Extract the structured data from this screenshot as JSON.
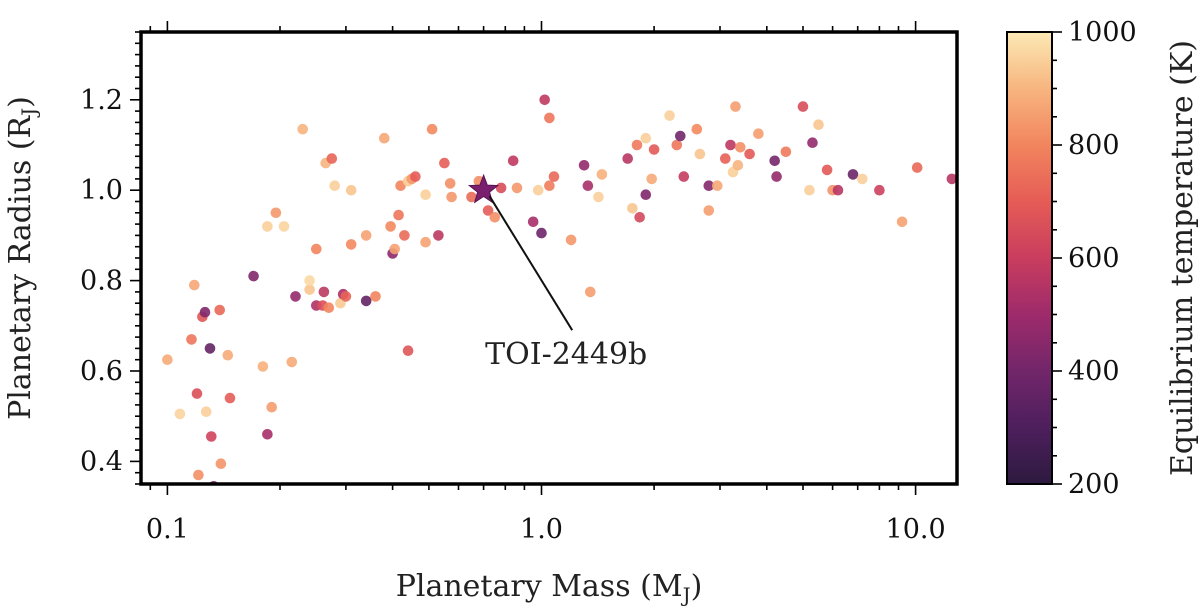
{
  "chart_data": {
    "type": "scatter",
    "xscale": "log",
    "xlim": [
      0.085,
      12.9
    ],
    "ylim": [
      0.35,
      1.35
    ],
    "xlabel": "Planetary Mass (M",
    "xlabel_sub": "J",
    "ylabel": "Planetary Radius (R",
    "ylabel_sub": "J",
    "colorbar_label": "Equilibrium temperature (K)",
    "colorbar_range": [
      200,
      1000
    ],
    "colorbar_ticks": [
      200,
      400,
      600,
      800,
      1000
    ],
    "x_ticks": [
      {
        "value": 0.1,
        "label": "0.1"
      },
      {
        "value": 1.0,
        "label": "1.0"
      },
      {
        "value": 10.0,
        "label": "10.0"
      }
    ],
    "y_ticks": [
      {
        "value": 0.4,
        "label": "0.4"
      },
      {
        "value": 0.6,
        "label": "0.6"
      },
      {
        "value": 0.8,
        "label": "0.8"
      },
      {
        "value": 1.0,
        "label": "1.0"
      },
      {
        "value": 1.2,
        "label": "1.2"
      }
    ],
    "highlight": {
      "name": "TOI-2449b",
      "x": 0.7,
      "y": 1.0,
      "temp": 420
    },
    "annotation": {
      "text": "TOI-2449b",
      "x": 1.15,
      "y": 0.615
    },
    "points": [
      [
        0.1,
        0.625,
        880
      ],
      [
        0.108,
        0.505,
        960
      ],
      [
        0.118,
        0.79,
        870
      ],
      [
        0.116,
        0.67,
        760
      ],
      [
        0.12,
        0.55,
        660
      ],
      [
        0.121,
        0.37,
        820
      ],
      [
        0.124,
        0.72,
        680
      ],
      [
        0.126,
        0.73,
        430
      ],
      [
        0.127,
        0.51,
        950
      ],
      [
        0.13,
        0.65,
        360
      ],
      [
        0.131,
        0.455,
        620
      ],
      [
        0.133,
        0.345,
        420
      ],
      [
        0.138,
        0.735,
        730
      ],
      [
        0.139,
        0.395,
        830
      ],
      [
        0.145,
        0.635,
        880
      ],
      [
        0.147,
        0.54,
        700
      ],
      [
        0.17,
        0.81,
        430
      ],
      [
        0.18,
        0.61,
        890
      ],
      [
        0.185,
        0.92,
        950
      ],
      [
        0.185,
        0.46,
        520
      ],
      [
        0.19,
        0.52,
        850
      ],
      [
        0.195,
        0.95,
        840
      ],
      [
        0.205,
        0.92,
        960
      ],
      [
        0.215,
        0.62,
        880
      ],
      [
        0.22,
        0.765,
        480
      ],
      [
        0.23,
        1.135,
        900
      ],
      [
        0.24,
        0.78,
        930
      ],
      [
        0.24,
        0.8,
        970
      ],
      [
        0.25,
        0.87,
        800
      ],
      [
        0.25,
        0.745,
        540
      ],
      [
        0.26,
        0.745,
        660
      ],
      [
        0.262,
        0.775,
        570
      ],
      [
        0.265,
        1.06,
        900
      ],
      [
        0.27,
        0.74,
        800
      ],
      [
        0.275,
        1.07,
        720
      ],
      [
        0.28,
        1.01,
        950
      ],
      [
        0.29,
        0.75,
        940
      ],
      [
        0.295,
        0.77,
        530
      ],
      [
        0.3,
        0.765,
        720
      ],
      [
        0.31,
        1.0,
        930
      ],
      [
        0.31,
        0.88,
        810
      ],
      [
        0.34,
        0.755,
        360
      ],
      [
        0.34,
        0.9,
        860
      ],
      [
        0.36,
        0.765,
        800
      ],
      [
        0.38,
        1.115,
        870
      ],
      [
        0.395,
        0.92,
        810
      ],
      [
        0.4,
        0.86,
        460
      ],
      [
        0.405,
        0.87,
        860
      ],
      [
        0.415,
        0.945,
        760
      ],
      [
        0.42,
        1.01,
        800
      ],
      [
        0.43,
        0.9,
        740
      ],
      [
        0.44,
        0.645,
        680
      ],
      [
        0.44,
        1.02,
        940
      ],
      [
        0.45,
        1.025,
        840
      ],
      [
        0.46,
        1.03,
        700
      ],
      [
        0.49,
        0.99,
        950
      ],
      [
        0.49,
        0.885,
        860
      ],
      [
        0.51,
        1.135,
        810
      ],
      [
        0.53,
        0.9,
        570
      ],
      [
        0.55,
        1.06,
        700
      ],
      [
        0.57,
        1.015,
        820
      ],
      [
        0.575,
        0.985,
        840
      ],
      [
        0.65,
        0.985,
        740
      ],
      [
        0.68,
        1.02,
        820
      ],
      [
        0.72,
        0.955,
        700
      ],
      [
        0.75,
        0.94,
        820
      ],
      [
        0.78,
        1.005,
        650
      ],
      [
        0.84,
        1.065,
        580
      ],
      [
        0.86,
        1.005,
        840
      ],
      [
        0.95,
        0.93,
        520
      ],
      [
        0.98,
        1.0,
        950
      ],
      [
        1.0,
        0.905,
        390
      ],
      [
        1.02,
        1.2,
        580
      ],
      [
        1.05,
        1.16,
        760
      ],
      [
        1.05,
        1.01,
        780
      ],
      [
        1.08,
        1.03,
        730
      ],
      [
        1.2,
        0.89,
        840
      ],
      [
        1.3,
        1.055,
        480
      ],
      [
        1.33,
        1.01,
        520
      ],
      [
        1.35,
        0.775,
        850
      ],
      [
        1.42,
        0.985,
        950
      ],
      [
        1.45,
        1.035,
        890
      ],
      [
        1.7,
        1.07,
        560
      ],
      [
        1.75,
        0.96,
        930
      ],
      [
        1.8,
        1.1,
        770
      ],
      [
        1.83,
        0.94,
        640
      ],
      [
        1.9,
        1.115,
        950
      ],
      [
        1.9,
        0.99,
        430
      ],
      [
        1.97,
        1.025,
        880
      ],
      [
        2.0,
        1.09,
        690
      ],
      [
        2.2,
        1.165,
        950
      ],
      [
        2.3,
        1.1,
        760
      ],
      [
        2.35,
        1.12,
        400
      ],
      [
        2.4,
        1.03,
        590
      ],
      [
        2.6,
        1.135,
        810
      ],
      [
        2.65,
        1.08,
        930
      ],
      [
        2.8,
        0.955,
        850
      ],
      [
        2.8,
        1.01,
        440
      ],
      [
        2.95,
        1.01,
        870
      ],
      [
        3.1,
        1.07,
        710
      ],
      [
        3.2,
        1.1,
        570
      ],
      [
        3.25,
        1.04,
        950
      ],
      [
        3.3,
        1.185,
        850
      ],
      [
        3.35,
        1.055,
        900
      ],
      [
        3.4,
        1.095,
        820
      ],
      [
        3.6,
        1.08,
        690
      ],
      [
        3.8,
        1.125,
        850
      ],
      [
        4.2,
        1.065,
        410
      ],
      [
        4.25,
        1.03,
        480
      ],
      [
        4.5,
        1.085,
        770
      ],
      [
        5.0,
        1.185,
        650
      ],
      [
        5.2,
        1.0,
        950
      ],
      [
        5.3,
        1.105,
        470
      ],
      [
        5.5,
        1.145,
        930
      ],
      [
        5.8,
        1.045,
        690
      ],
      [
        6.0,
        1.0,
        830
      ],
      [
        6.2,
        1.0,
        560
      ],
      [
        6.8,
        1.035,
        380
      ],
      [
        7.2,
        1.025,
        950
      ],
      [
        8.0,
        1.0,
        610
      ],
      [
        9.2,
        0.93,
        860
      ],
      [
        10.1,
        1.05,
        730
      ],
      [
        12.5,
        1.025,
        560
      ]
    ]
  }
}
